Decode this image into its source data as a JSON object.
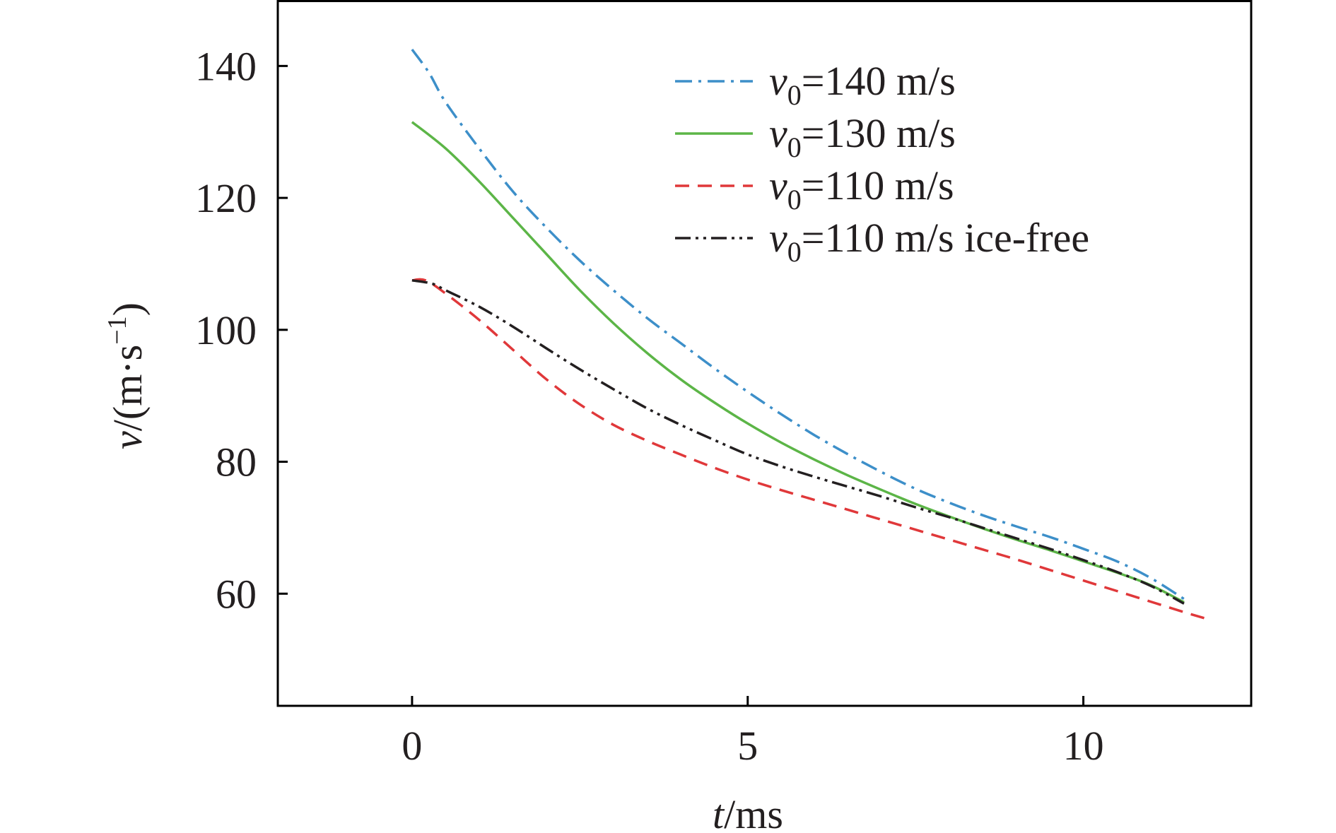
{
  "chart_data": {
    "type": "line",
    "title": "",
    "xlabel": {
      "var": "t",
      "unit": "/ms"
    },
    "ylabel": {
      "var": "v",
      "unit_prefix": "/(m·s",
      "unit_sup": "−1",
      "unit_suffix": ")"
    },
    "xlim": [
      -2,
      12.5
    ],
    "ylim": [
      43,
      150
    ],
    "xticks": [
      0,
      5,
      10
    ],
    "yticks": [
      60,
      80,
      100,
      120,
      140
    ],
    "grid": false,
    "legend": "top-right",
    "series": [
      {
        "name": "v0=140 m/s",
        "legend": {
          "var": "v",
          "sub": "0",
          "text": "=140 m/s"
        },
        "color": "#3d8fc9",
        "dash": "dashdot",
        "x": [
          0,
          0.25,
          0.5,
          1,
          1.5,
          2,
          2.5,
          3,
          3.5,
          4,
          4.5,
          5,
          5.5,
          6,
          6.5,
          7,
          7.5,
          8,
          8.5,
          9,
          9.5,
          10,
          10.5,
          11,
          11.5
        ],
        "y": [
          142.5,
          139,
          134.5,
          127.5,
          121,
          115.5,
          110.5,
          106,
          101.8,
          98,
          94.2,
          90.6,
          87.2,
          84,
          81.1,
          78.4,
          75.9,
          73.8,
          71.9,
          70.2,
          68.6,
          66.8,
          64.9,
          62.4,
          59.2
        ]
      },
      {
        "name": "v0=130 m/s",
        "legend": {
          "var": "v",
          "sub": "0",
          "text": "=130 m/s"
        },
        "color": "#5cb547",
        "dash": "solid",
        "x": [
          0,
          0.5,
          1,
          1.5,
          2,
          2.5,
          3,
          3.5,
          4,
          4.5,
          5,
          5.5,
          6,
          6.5,
          7,
          7.5,
          8,
          8.5,
          9,
          9.5,
          10,
          10.5,
          11,
          11.5
        ],
        "y": [
          131.5,
          127.5,
          122.5,
          117,
          111.5,
          106,
          101,
          96.5,
          92.5,
          89,
          85.8,
          82.9,
          80.3,
          77.9,
          75.7,
          73.6,
          71.7,
          69.9,
          68.2,
          66.6,
          64.9,
          63.2,
          61.3,
          58.7
        ]
      },
      {
        "name": "v0=110 m/s",
        "legend": {
          "var": "v",
          "sub": "0",
          "text": "=110 m/s"
        },
        "color": "#e0383a",
        "dash": "dashed",
        "x": [
          0,
          0.2,
          0.5,
          1,
          1.5,
          2,
          2.5,
          3,
          3.5,
          4,
          4.5,
          5,
          5.5,
          6,
          6.5,
          7,
          7.5,
          8,
          8.5,
          9,
          9.5,
          10,
          10.5,
          11,
          11.5,
          11.8
        ],
        "y": [
          107.5,
          107.5,
          105.5,
          101.5,
          97,
          92.5,
          88.7,
          85.6,
          83.2,
          81.1,
          79.1,
          77.3,
          75.7,
          74.2,
          72.7,
          71.2,
          69.7,
          68.2,
          66.7,
          65.2,
          63.6,
          62,
          60.4,
          58.8,
          57.2,
          56.3
        ]
      },
      {
        "name": "v0=110 m/s ice-free",
        "legend": {
          "var": "v",
          "sub": "0",
          "text": "=110 m/s ice-free"
        },
        "color": "#231f20",
        "dash": "dashdotdot",
        "x": [
          0,
          0.3,
          0.5,
          1,
          1.5,
          2,
          2.5,
          3,
          3.5,
          4,
          4.5,
          5,
          5.5,
          6,
          6.5,
          7,
          7.5,
          8,
          8.5,
          9,
          9.5,
          10,
          10.5,
          11,
          11.5
        ],
        "y": [
          107.5,
          107,
          106,
          103.5,
          100.5,
          97.2,
          94,
          91,
          88.1,
          85.6,
          83.3,
          81.1,
          79.3,
          77.7,
          76.2,
          74.7,
          73.1,
          71.6,
          70,
          68.4,
          66.8,
          65.1,
          63.3,
          61.2,
          58.5
        ]
      }
    ]
  }
}
